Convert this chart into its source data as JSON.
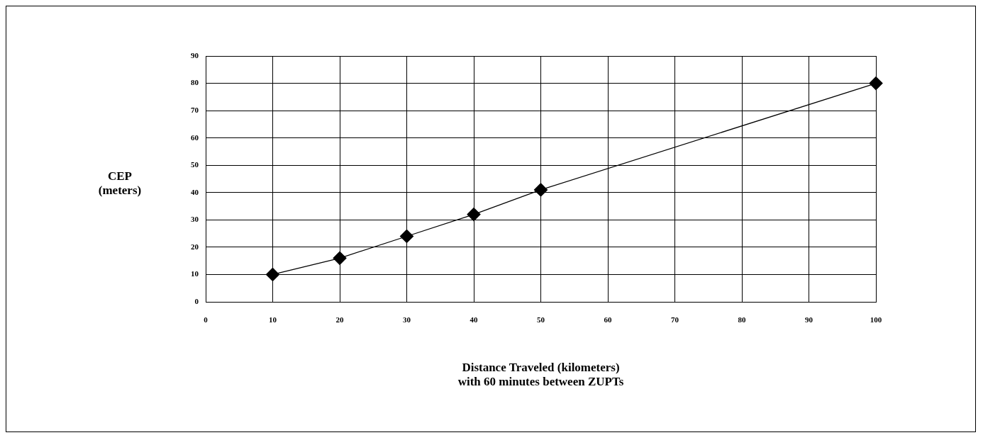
{
  "chart_data": {
    "type": "line",
    "xlabel": "Distance Traveled (kilometers)\nwith 60 minutes between ZUPTs",
    "ylabel": "CEP\n(meters)",
    "x": [
      10,
      20,
      30,
      40,
      50,
      100
    ],
    "series": [
      {
        "color": "#000000",
        "values": [
          10,
          16,
          24,
          32,
          41,
          80
        ]
      }
    ],
    "xlim": [
      0,
      100
    ],
    "xticks": [
      0,
      10,
      20,
      30,
      40,
      50,
      60,
      70,
      80,
      90,
      100
    ],
    "ylim": [
      0,
      90
    ],
    "yticks": [
      0,
      10,
      20,
      30,
      40,
      50,
      60,
      70,
      80,
      90
    ],
    "grid": true,
    "legend": false,
    "marker": "diamond",
    "line_style": "solid"
  }
}
